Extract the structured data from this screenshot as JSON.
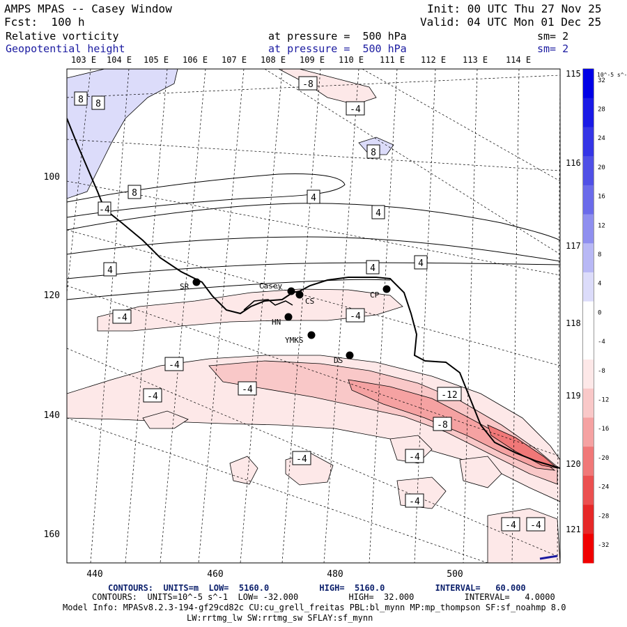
{
  "header": {
    "title": "AMPS MPAS -- Casey Window",
    "fcst": "Fcst:  100 h",
    "init": "Init: 00 UTC Thu 27 Nov 25",
    "valid": "Valid: 04 UTC Mon 01 Dec 25",
    "field1": {
      "name": "Relative vorticity",
      "level": "at pressure =  500 hPa",
      "sm": "sm= 2"
    },
    "field2": {
      "name": "Geopotential height",
      "level": "at pressure =  500 hPa",
      "sm": "sm= 2"
    }
  },
  "axes": {
    "lon_top": [
      "103 E",
      "104 E",
      "105 E",
      "106 E",
      "107 E",
      "108 E",
      "109 E",
      "110 E",
      "111 E",
      "112 E",
      "113 E",
      "114 E"
    ],
    "lat_right": [
      "115 E",
      "116 E",
      "117 E",
      "118 E",
      "119 E",
      "120 E",
      "121 E"
    ],
    "x_ticks": [
      "440",
      "460",
      "480",
      "500"
    ],
    "y_ticks": [
      "100",
      "120",
      "140",
      "160"
    ]
  },
  "stations": [
    {
      "label": "SR"
    },
    {
      "label": "Casey"
    },
    {
      "label": "CS"
    },
    {
      "label": "HN"
    },
    {
      "label": "YMKS"
    },
    {
      "label": "DS"
    },
    {
      "label": "CP"
    }
  ],
  "contour_labels": [
    "8",
    "8",
    "8",
    "-8",
    "-4",
    "8",
    "4",
    "-4",
    "4",
    "4",
    "4",
    "4",
    "-4",
    "-4",
    "-4",
    "-4",
    "-4",
    "-12",
    "-8",
    "-4",
    "-4",
    "-4",
    "-4",
    "-4"
  ],
  "colorbar": {
    "unit": "10^-5 s^-1",
    "ticks": [
      "32",
      "28",
      "24",
      "20",
      "16",
      "12",
      "8",
      "4",
      "0",
      "-4",
      "-8",
      "-12",
      "-16",
      "-20",
      "-24",
      "-28",
      "-32"
    ],
    "colors": [
      "#0000e6",
      "#1a1ae6",
      "#3535e6",
      "#5050e6",
      "#6b6bea",
      "#8f8fef",
      "#b8b8f5",
      "#dcdcfa",
      "#ffffff",
      "#ffffff",
      "#fde8e8",
      "#f9c8c8",
      "#f5a2a2",
      "#f07878",
      "#eb5050",
      "#e62828",
      "#f00000"
    ]
  },
  "footer": {
    "contours1": "CONTOURS:  UNITS=m  LOW=  5160.0          HIGH=  5160.0          INTERVAL=   60.000",
    "contours2": "CONTOURS:  UNITS=10^-5 s^-1  LOW= -32.000          HIGH=  32.000          INTERVAL=   4.0000",
    "model_info": "Model Info: MPASv8.2.3-194-gf29cd82c CU:cu_grell_freitas PBL:bl_mynn MP:mp_thompson SF:sf_noahmp 8.0",
    "model_info2": "LW:rrtmg_lw SW:rrtmg_sw SFLAY:sf_mynn"
  }
}
